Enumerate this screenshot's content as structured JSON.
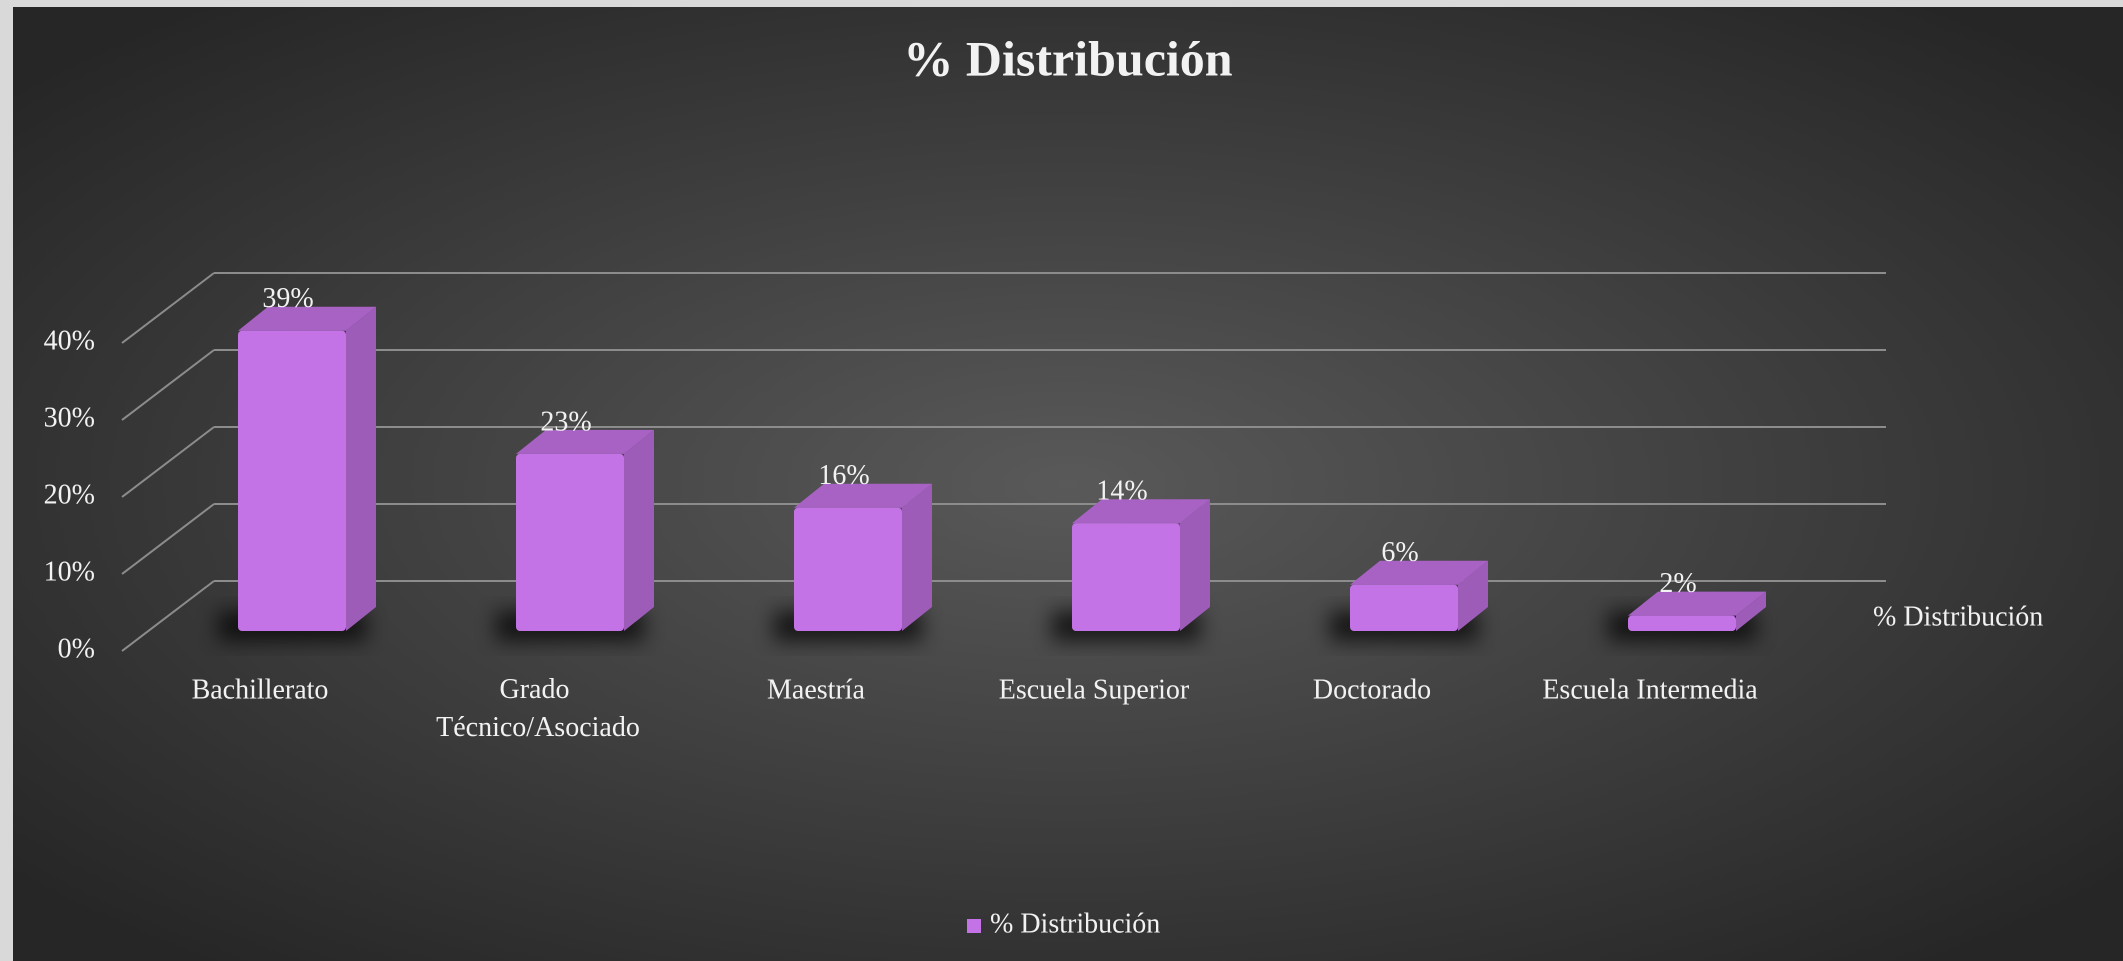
{
  "chart_data": {
    "type": "bar3d",
    "title": "% Distribución",
    "categories": [
      "Bachillerato",
      "Grado Técnico/Asociado",
      "Maestría",
      "Escuela  Superior",
      "Doctorado",
      "Escuela Intermedia"
    ],
    "series": [
      {
        "name": "% Distribución",
        "color": "#c473e6",
        "values": [
          39,
          23,
          16,
          14,
          6,
          2
        ],
        "value_labels": [
          "39%",
          "23%",
          "16%",
          "14%",
          "6%",
          "2%"
        ]
      }
    ],
    "ylim": [
      0,
      40
    ],
    "yticks": [
      {
        "value": 0,
        "label": "0%"
      },
      {
        "value": 10,
        "label": "10%"
      },
      {
        "value": 20,
        "label": "20%"
      },
      {
        "value": 30,
        "label": "30%"
      },
      {
        "value": 40,
        "label": "40%"
      }
    ],
    "grid": true,
    "legend": "bottom"
  }
}
